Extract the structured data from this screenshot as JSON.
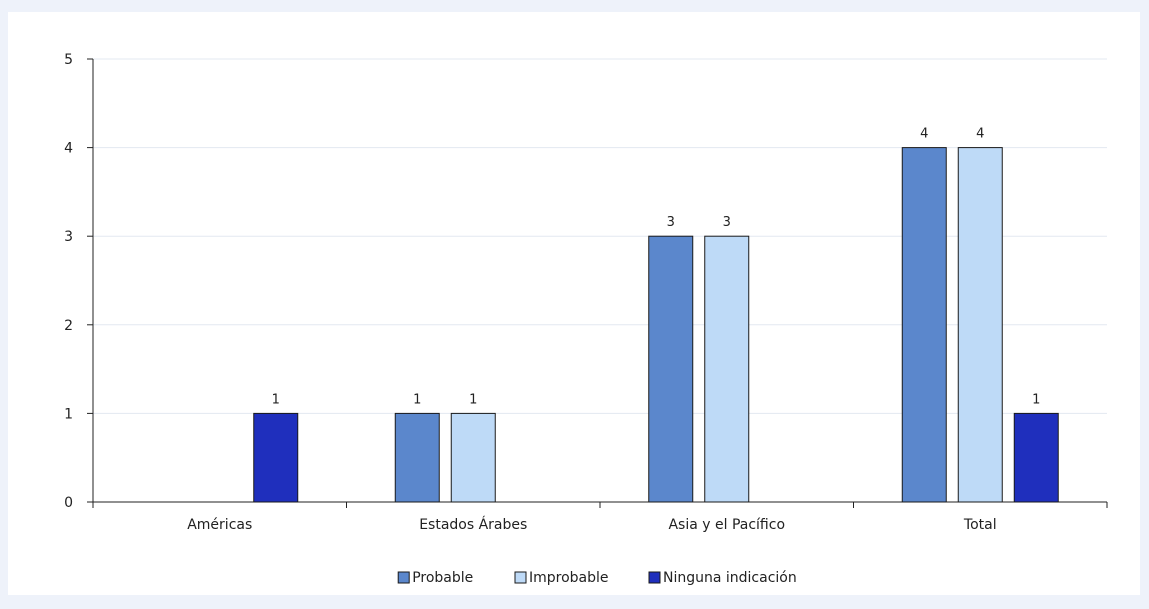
{
  "chart_data": {
    "type": "bar",
    "title": "",
    "xlabel": "",
    "ylabel": "",
    "ylim": [
      0,
      5
    ],
    "yticks": [
      0,
      1,
      2,
      3,
      4,
      5
    ],
    "grid": true,
    "legend_position": "bottom",
    "categories": [
      "Américas",
      "Estados Árabes",
      "Asia y el Pacífico",
      "Total"
    ],
    "series": [
      {
        "name": "Probable",
        "color": "#5b87cc",
        "values": [
          null,
          1,
          3,
          4
        ]
      },
      {
        "name": "Improbable",
        "color": "#bedaf7",
        "values": [
          null,
          1,
          3,
          4
        ]
      },
      {
        "name": "Ninguna indicación",
        "color": "#1f2fbd",
        "values": [
          1,
          null,
          null,
          1
        ]
      }
    ]
  }
}
